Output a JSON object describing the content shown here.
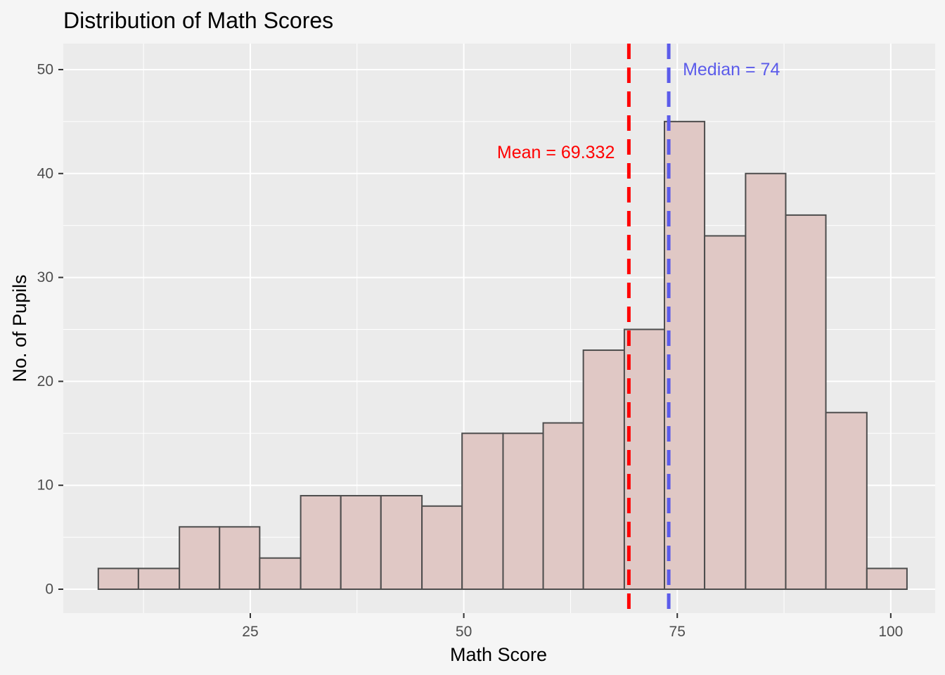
{
  "chart_data": {
    "type": "bar",
    "title": "Distribution of Math Scores",
    "xlabel": "Math Score",
    "ylabel": "No. of Pupils",
    "xlim": [
      3.1,
      105.2
    ],
    "ylim": [
      -2.3,
      52.5
    ],
    "xticks": [
      25,
      50,
      75,
      100
    ],
    "yticks": [
      0,
      10,
      20,
      30,
      40,
      50
    ],
    "bins": [
      {
        "x0": 7.2,
        "x1": 11.9,
        "count": 2
      },
      {
        "x0": 11.9,
        "x1": 16.7,
        "count": 2
      },
      {
        "x0": 16.7,
        "x1": 21.4,
        "count": 6
      },
      {
        "x0": 21.4,
        "x1": 26.1,
        "count": 6
      },
      {
        "x0": 26.1,
        "x1": 30.9,
        "count": 3
      },
      {
        "x0": 30.9,
        "x1": 35.6,
        "count": 9
      },
      {
        "x0": 35.6,
        "x1": 40.3,
        "count": 9
      },
      {
        "x0": 40.3,
        "x1": 45.1,
        "count": 9
      },
      {
        "x0": 45.1,
        "x1": 49.8,
        "count": 8
      },
      {
        "x0": 49.8,
        "x1": 54.6,
        "count": 15
      },
      {
        "x0": 54.6,
        "x1": 59.3,
        "count": 15
      },
      {
        "x0": 59.3,
        "x1": 64.0,
        "count": 16
      },
      {
        "x0": 64.0,
        "x1": 68.8,
        "count": 23
      },
      {
        "x0": 68.8,
        "x1": 73.5,
        "count": 25
      },
      {
        "x0": 73.5,
        "x1": 78.2,
        "count": 45
      },
      {
        "x0": 78.2,
        "x1": 83.0,
        "count": 34
      },
      {
        "x0": 83.0,
        "x1": 87.7,
        "count": 40
      },
      {
        "x0": 87.7,
        "x1": 92.4,
        "count": 36
      },
      {
        "x0": 92.4,
        "x1": 97.2,
        "count": 17
      },
      {
        "x0": 97.2,
        "x1": 101.9,
        "count": 2
      }
    ],
    "reference_lines": [
      {
        "name": "mean",
        "value": 69.332,
        "color": "#ff0000",
        "label": "Mean = 69.332",
        "label_y": 42,
        "label_side": "left"
      },
      {
        "name": "median",
        "value": 74,
        "color": "#5b5bea",
        "label": "Median = 74",
        "label_y": 50,
        "label_side": "right"
      }
    ],
    "bar_fill": "#e0c8c5",
    "bar_stroke": "#4d4d4d",
    "panel_background": "#ebebeb",
    "grid": true,
    "legend": "none"
  }
}
